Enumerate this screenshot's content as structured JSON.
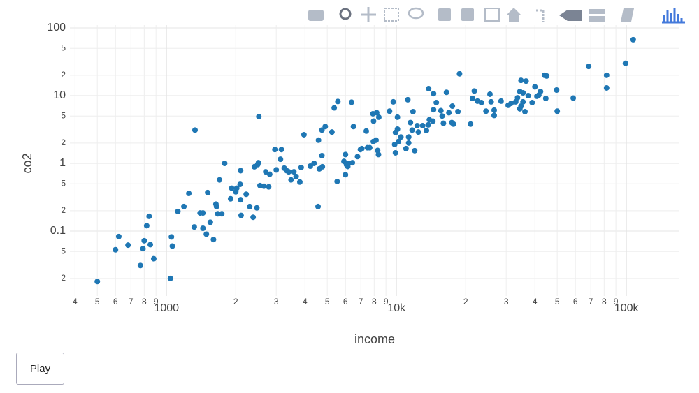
{
  "chart_data": {
    "type": "scatter",
    "x_label": "income",
    "y_label": "co2",
    "color": "#1f77b4",
    "xlog": true,
    "ylog": true,
    "grid": true,
    "xlim": [
      380,
      170000
    ],
    "ylim": [
      0.011,
      110
    ],
    "xticks": [
      {
        "value": 400,
        "label": "4"
      },
      {
        "value": 500,
        "label": "5"
      },
      {
        "value": 600,
        "label": "6"
      },
      {
        "value": 700,
        "label": "7"
      },
      {
        "value": 800,
        "label": "8"
      },
      {
        "value": 900,
        "label": "9"
      },
      1000,
      {
        "value": 2000,
        "label": "2"
      },
      {
        "value": 3000,
        "label": "3"
      },
      {
        "value": 4000,
        "label": "4"
      },
      {
        "value": 5000,
        "label": "5"
      },
      {
        "value": 6000,
        "label": "6"
      },
      {
        "value": 7000,
        "label": "7"
      },
      {
        "value": 8000,
        "label": "8"
      },
      {
        "value": 9000,
        "label": "9"
      },
      {
        "value": 10000,
        "label": "10k"
      },
      {
        "value": 20000,
        "label": "2"
      },
      {
        "value": 30000,
        "label": "3"
      },
      {
        "value": 40000,
        "label": "4"
      },
      {
        "value": 50000,
        "label": "5"
      },
      {
        "value": 60000,
        "label": "6"
      },
      {
        "value": 70000,
        "label": "7"
      },
      {
        "value": 80000,
        "label": "8"
      },
      {
        "value": 90000,
        "label": "9"
      },
      {
        "value": 100000,
        "label": "100k"
      }
    ],
    "yticks": [
      {
        "value": 0.02,
        "label": "2"
      },
      {
        "value": 0.05,
        "label": "5"
      },
      0.1,
      {
        "value": 0.2,
        "label": "2"
      },
      {
        "value": 0.5,
        "label": "5"
      },
      1,
      2,
      5,
      10,
      {
        "value": 20,
        "label": "2"
      },
      {
        "value": 50,
        "label": "5"
      },
      100
    ],
    "x": [
      500,
      600,
      620,
      680,
      770,
      790,
      800,
      820,
      840,
      850,
      880,
      1040,
      1050,
      1060,
      1120,
      1190,
      1250,
      1330,
      1320,
      1400,
      1440,
      1440,
      1490,
      1510,
      1550,
      1600,
      1640,
      1650,
      1670,
      1740,
      1700,
      1790,
      1900,
      1920,
      2000,
      2020,
      2090,
      2100,
      2100,
      2110,
      2220,
      2300,
      2380,
      2410,
      2470,
      2490,
      2510,
      2520,
      2550,
      2650,
      2700,
      2780,
      2810,
      2960,
      3000,
      3160,
      3130,
      3250,
      3330,
      3400,
      3480,
      3580,
      3660,
      3800,
      3850,
      3960,
      4220,
      4380,
      4560,
      4580,
      4620,
      4740,
      4760,
      4740,
      4900,
      5240,
      5360,
      5520,
      5560,
      5910,
      6000,
      6060,
      6140,
      6000,
      6180,
      6380,
      6500,
      6430,
      6770,
      6970,
      7070,
      7390,
      7480,
      7650,
      7900,
      7950,
      7930,
      8150,
      8280,
      8350,
      8200,
      8380,
      9330,
      9690,
      9900,
      9820,
      9900,
      10100,
      10100,
      10200,
      10450,
      11200,
      11000,
      11300,
      11300,
      11500,
      11700,
      11800,
      12000,
      12300,
      12450,
      13000,
      13500,
      13750,
      13900,
      13800,
      14400,
      14500,
      14500,
      14900,
      15600,
      15800,
      16000,
      16500,
      16900,
      17500,
      17700,
      17400,
      18800,
      18500,
      21000,
      21400,
      21800,
      22500,
      24500,
      25500,
      25800,
      26600,
      26600,
      23400,
      28500,
      30600,
      31500,
      33000,
      33600,
      34400,
      34800,
      34400,
      34800,
      35500,
      35500,
      36200,
      36600,
      37400,
      38900,
      40000,
      40800,
      41600,
      42300,
      44000,
      45000,
      44600,
      49700,
      50000,
      58700,
      68500,
      82000,
      82000,
      99000,
      107000
    ],
    "y": [
      0.018,
      0.053,
      0.083,
      0.062,
      0.031,
      0.055,
      0.072,
      0.12,
      0.165,
      0.063,
      0.039,
      0.02,
      0.082,
      0.06,
      0.195,
      0.23,
      0.36,
      3.1,
      0.115,
      0.185,
      0.185,
      0.11,
      0.09,
      0.37,
      0.135,
      0.075,
      0.25,
      0.23,
      0.18,
      0.18,
      0.57,
      1.0,
      0.3,
      0.43,
      0.38,
      0.43,
      0.49,
      0.78,
      0.29,
      0.17,
      0.35,
      0.23,
      0.16,
      0.89,
      0.22,
      0.96,
      1.02,
      4.9,
      0.47,
      0.46,
      0.75,
      0.45,
      0.69,
      1.6,
      0.8,
      1.6,
      1.15,
      0.85,
      0.78,
      0.75,
      0.57,
      0.75,
      0.64,
      0.53,
      0.87,
      2.65,
      0.91,
      1.0,
      0.23,
      2.2,
      0.83,
      1.3,
      0.89,
      3.1,
      3.5,
      2.9,
      6.6,
      0.54,
      8.2,
      1.07,
      1.35,
      0.96,
      0.9,
      0.68,
      1.0,
      8.0,
      3.5,
      1.02,
      1.26,
      1.6,
      1.65,
      3.0,
      1.7,
      1.7,
      5.4,
      4.2,
      2.1,
      2.2,
      1.55,
      1.35,
      5.6,
      4.8,
      5.9,
      8.1,
      2.85,
      1.9,
      1.43,
      3.2,
      4.8,
      2.1,
      2.45,
      8.7,
      1.65,
      2.45,
      2.0,
      4.0,
      3.1,
      5.8,
      1.54,
      3.6,
      2.9,
      3.6,
      3.05,
      3.7,
      4.4,
      12.7,
      4.2,
      6.2,
      10.7,
      7.9,
      6.0,
      5.0,
      3.9,
      11.2,
      5.6,
      7.0,
      3.8,
      4.0,
      21,
      5.8,
      3.8,
      9.1,
      11.7,
      8.3,
      5.9,
      10.5,
      8.1,
      6.1,
      5.1,
      7.9,
      8.3,
      7.2,
      7.7,
      8.1,
      9.3,
      11.5,
      16.8,
      6.4,
      7.0,
      11.0,
      8.1,
      5.8,
      16.4,
      10,
      7.9,
      13.5,
      9.8,
      10.2,
      11.5,
      20,
      19.5,
      9.1,
      12.1,
      5.9,
      9.2,
      27,
      20,
      13,
      30,
      67
    ]
  },
  "play_button": "Play"
}
